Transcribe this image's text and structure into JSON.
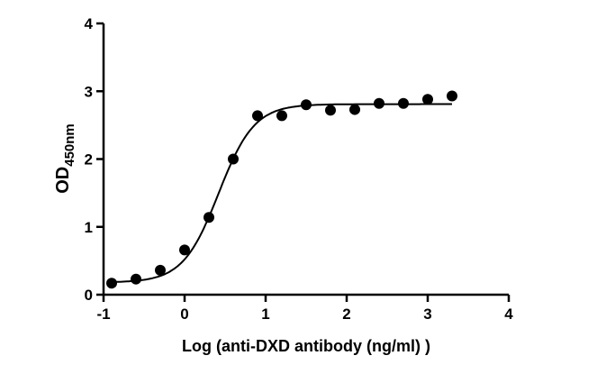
{
  "chart_data": {
    "type": "scatter",
    "title": "",
    "xlabel": "Log (anti-DXD antibody (ng/ml) )",
    "ylabel_main": "OD",
    "ylabel_sub": "450nm",
    "xlim": [
      -1,
      4
    ],
    "ylim": [
      0,
      4
    ],
    "xticks": [
      -1,
      0,
      1,
      2,
      3,
      4
    ],
    "yticks": [
      0,
      1,
      2,
      3,
      4
    ],
    "grid": false,
    "marker_color": "#000000",
    "points": [
      {
        "x": -0.9,
        "y": 0.17
      },
      {
        "x": -0.6,
        "y": 0.23
      },
      {
        "x": -0.3,
        "y": 0.36
      },
      {
        "x": 0.0,
        "y": 0.66
      },
      {
        "x": 0.3,
        "y": 1.14
      },
      {
        "x": 0.6,
        "y": 2.0
      },
      {
        "x": 0.9,
        "y": 2.64
      },
      {
        "x": 1.2,
        "y": 2.64
      },
      {
        "x": 1.5,
        "y": 2.8
      },
      {
        "x": 1.8,
        "y": 2.72
      },
      {
        "x": 2.1,
        "y": 2.73
      },
      {
        "x": 2.4,
        "y": 2.82
      },
      {
        "x": 2.7,
        "y": 2.82
      },
      {
        "x": 3.0,
        "y": 2.88
      },
      {
        "x": 3.3,
        "y": 2.93
      }
    ],
    "fit_curve": {
      "model": "4PL",
      "bottom": 0.18,
      "top": 2.81,
      "log_ec50": 0.42,
      "hill": 1.97,
      "x_range": [
        -0.9,
        3.3
      ]
    }
  }
}
